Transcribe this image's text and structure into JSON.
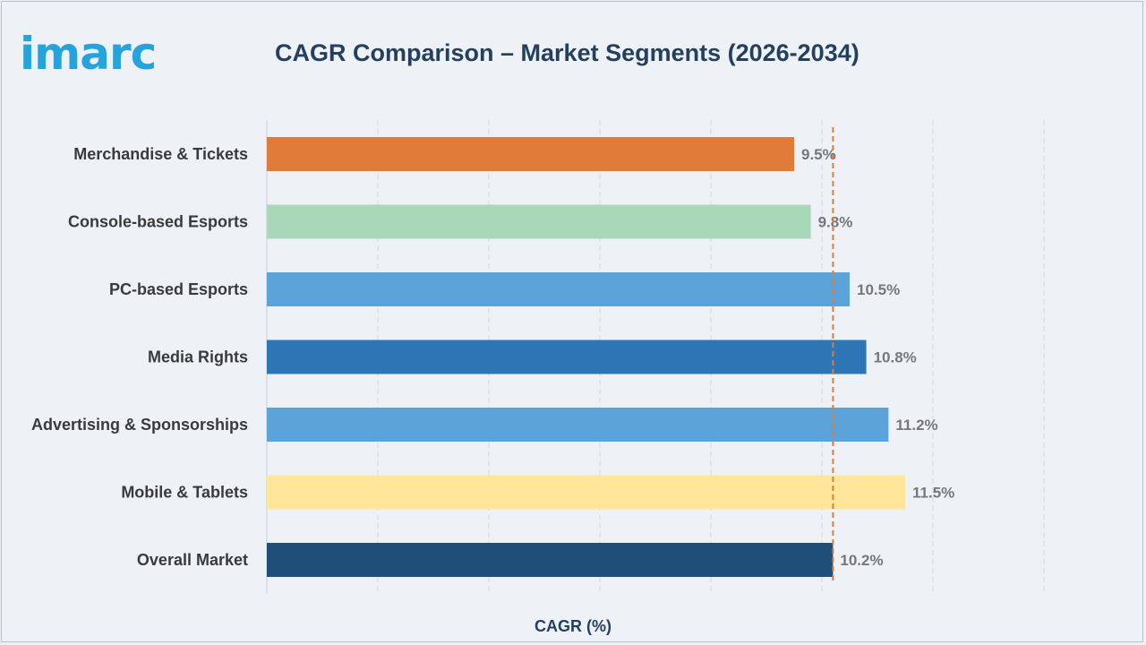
{
  "logo_text": "imarc",
  "chart_data": {
    "type": "bar",
    "orientation": "horizontal",
    "title": "CAGR Comparison – Market Segments (2026-2034)",
    "xlabel": "CAGR (%)",
    "ylabel": "",
    "categories": [
      "Merchandise & Tickets",
      "Console-based Esports",
      "PC-based Esports",
      "Media Rights",
      "Advertising & Sponsorships",
      "Mobile & Tablets",
      "Overall Market"
    ],
    "values": [
      9.5,
      9.8,
      10.5,
      10.8,
      11.2,
      11.5,
      10.2
    ],
    "value_labels": [
      "9.5%",
      "9.8%",
      "10.5%",
      "10.8%",
      "11.2%",
      "11.5%",
      "10.2%"
    ],
    "colors": [
      "#e17b3a",
      "#a9d8b9",
      "#5ba3d8",
      "#2e75b6",
      "#5ba3d8",
      "#ffe699",
      "#1f4e79"
    ],
    "reference_line": {
      "value": 10.2,
      "color": "#e17b3a",
      "style": "dashed"
    },
    "xlim": [
      0,
      14
    ],
    "grid": true,
    "legend": "none"
  }
}
